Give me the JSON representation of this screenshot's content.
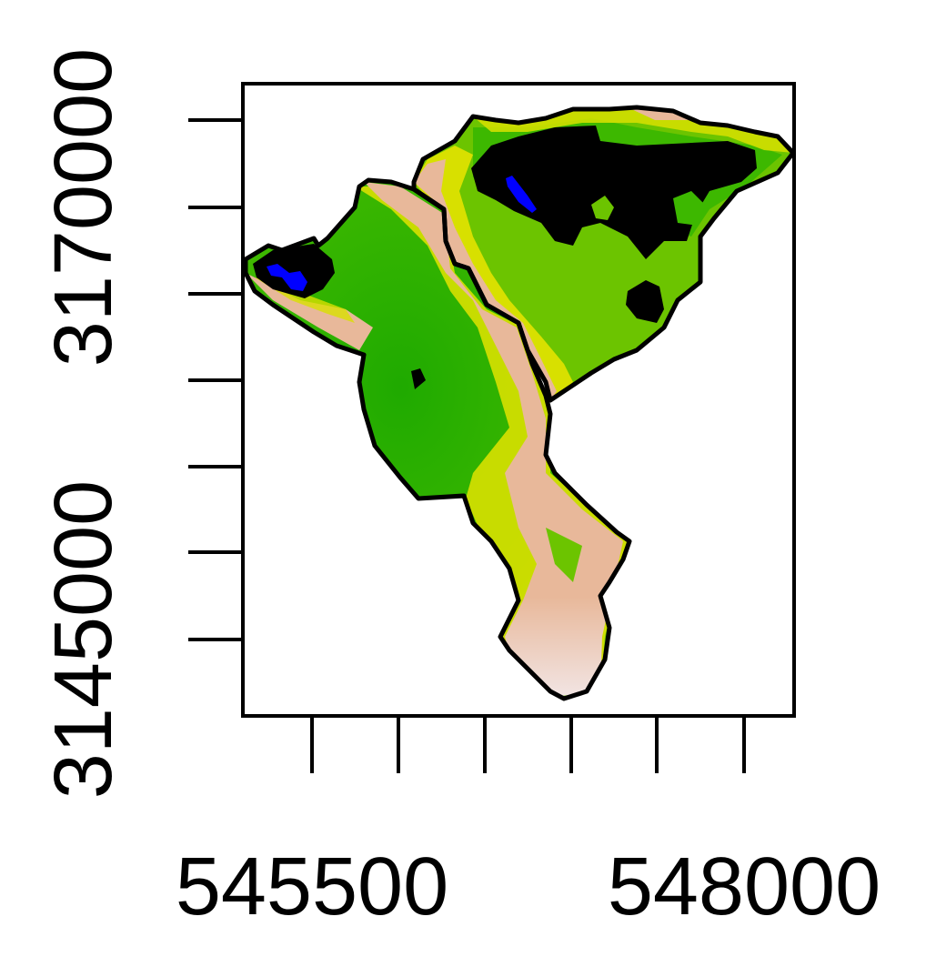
{
  "map": {
    "type": "raster-map",
    "x_axis": {
      "tick_count": 6,
      "labeled_ticks": [
        {
          "value": 545500,
          "label": "545500"
        },
        {
          "value": 548000,
          "label": "548000"
        }
      ]
    },
    "y_axis": {
      "tick_count": 7,
      "labeled_ticks": [
        {
          "value": 3145000,
          "label": "3145000"
        },
        {
          "value": 3170000,
          "label": "3170000"
        }
      ]
    },
    "boundary_count": 2,
    "colors": {
      "frame": "#000000",
      "water": "#0000ff",
      "lowland": "#000000",
      "green_dark": "#1faa00",
      "green_light": "#6cc400",
      "yellow": "#d8e000",
      "tan": "#e8b89a",
      "peak": "#f2e6e6"
    }
  }
}
